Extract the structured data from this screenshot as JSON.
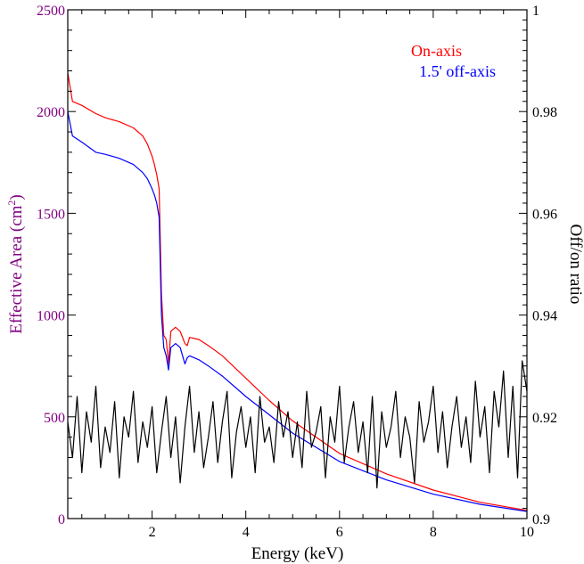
{
  "chart_data": {
    "type": "line",
    "xlabel": "Energy (keV)",
    "ylabel_left": "Effective Area (cm",
    "ylabel_left_sup": "2",
    "ylabel_left_close": ")",
    "ylabel_right": "Off/on ratio",
    "xlim": [
      0.2,
      10
    ],
    "ylim_left": [
      0,
      2500
    ],
    "ylim_right": [
      0.9,
      1.0
    ],
    "x_ticks": [
      2,
      4,
      6,
      8,
      10
    ],
    "x_tick_labels": [
      "2",
      "4",
      "6",
      "8",
      "10"
    ],
    "y_left_ticks": [
      0,
      500,
      1000,
      1500,
      2000,
      2500
    ],
    "y_left_tick_labels": [
      "0",
      "500",
      "1000",
      "1500",
      "2000",
      "2500"
    ],
    "y_right_ticks": [
      0.9,
      0.92,
      0.94,
      0.96,
      0.98,
      1.0
    ],
    "y_right_tick_labels": [
      "0.9",
      "0.92",
      "0.94",
      "0.96",
      "0.98",
      "1"
    ],
    "colors": {
      "left_axis": "#800080",
      "on_axis": "#ff0000",
      "off_axis": "#0000ff",
      "ratio": "#000000"
    },
    "legend_placement": "top-right",
    "series": [
      {
        "name": "On-axis",
        "axis": "left",
        "x": [
          0.2,
          0.3,
          0.5,
          0.8,
          1.0,
          1.3,
          1.6,
          1.8,
          1.9,
          2.0,
          2.05,
          2.1,
          2.15,
          2.2,
          2.25,
          2.3,
          2.35,
          2.4,
          2.45,
          2.5,
          2.6,
          2.7,
          2.75,
          2.8,
          3.0,
          3.2,
          3.5,
          4.0,
          4.5,
          5.0,
          6.0,
          7.0,
          8.0,
          9.0,
          10.0
        ],
        "y": [
          2190,
          2050,
          2030,
          1990,
          1970,
          1950,
          1920,
          1880,
          1840,
          1780,
          1740,
          1690,
          1620,
          1100,
          900,
          880,
          760,
          920,
          930,
          940,
          920,
          860,
          850,
          890,
          880,
          850,
          800,
          690,
          580,
          480,
          320,
          220,
          140,
          80,
          40
        ]
      },
      {
        "name": "1.5' off-axis",
        "axis": "left",
        "x": [
          0.2,
          0.3,
          0.5,
          0.8,
          1.0,
          1.3,
          1.6,
          1.8,
          1.9,
          2.0,
          2.05,
          2.1,
          2.15,
          2.2,
          2.25,
          2.3,
          2.35,
          2.4,
          2.45,
          2.5,
          2.6,
          2.7,
          2.75,
          2.8,
          3.0,
          3.2,
          3.5,
          4.0,
          4.5,
          5.0,
          6.0,
          7.0,
          8.0,
          9.0,
          10.0
        ],
        "y": [
          2000,
          1880,
          1850,
          1800,
          1790,
          1770,
          1740,
          1700,
          1670,
          1620,
          1590,
          1550,
          1480,
          1000,
          840,
          800,
          730,
          840,
          850,
          860,
          840,
          760,
          790,
          800,
          780,
          750,
          700,
          600,
          510,
          420,
          280,
          190,
          120,
          70,
          35
        ]
      },
      {
        "name": "",
        "axis": "right",
        "x": [
          0.2,
          0.3,
          0.4,
          0.5,
          0.6,
          0.7,
          0.8,
          0.9,
          1.0,
          1.1,
          1.2,
          1.3,
          1.4,
          1.5,
          1.6,
          1.7,
          1.8,
          1.9,
          2.0,
          2.1,
          2.2,
          2.3,
          2.4,
          2.5,
          2.6,
          2.7,
          2.8,
          2.9,
          3.0,
          3.1,
          3.2,
          3.3,
          3.4,
          3.5,
          3.6,
          3.7,
          3.8,
          3.9,
          4.0,
          4.1,
          4.2,
          4.3,
          4.4,
          4.5,
          4.6,
          4.7,
          4.8,
          4.9,
          5.0,
          5.1,
          5.2,
          5.3,
          5.4,
          5.5,
          5.6,
          5.7,
          5.8,
          5.9,
          6.0,
          6.1,
          6.2,
          6.3,
          6.4,
          6.5,
          6.6,
          6.7,
          6.8,
          6.9,
          7.0,
          7.1,
          7.2,
          7.3,
          7.4,
          7.5,
          7.6,
          7.7,
          7.8,
          7.9,
          8.0,
          8.1,
          8.2,
          8.3,
          8.4,
          8.5,
          8.6,
          8.7,
          8.8,
          8.9,
          9.0,
          9.1,
          9.2,
          9.3,
          9.4,
          9.5,
          9.6,
          9.7,
          9.8,
          9.9,
          10.0
        ],
        "y": [
          0.919,
          0.912,
          0.924,
          0.909,
          0.921,
          0.915,
          0.926,
          0.91,
          0.918,
          0.913,
          0.923,
          0.908,
          0.92,
          0.916,
          0.925,
          0.911,
          0.919,
          0.914,
          0.922,
          0.909,
          0.917,
          0.924,
          0.912,
          0.92,
          0.907,
          0.918,
          0.926,
          0.913,
          0.921,
          0.91,
          0.916,
          0.923,
          0.911,
          0.919,
          0.925,
          0.908,
          0.917,
          0.922,
          0.914,
          0.92,
          0.909,
          0.924,
          0.915,
          0.918,
          0.911,
          0.923,
          0.916,
          0.921,
          0.912,
          0.919,
          0.91,
          0.925,
          0.914,
          0.917,
          0.922,
          0.908,
          0.92,
          0.915,
          0.926,
          0.911,
          0.918,
          0.923,
          0.913,
          0.919,
          0.909,
          0.924,
          0.906,
          0.921,
          0.914,
          0.918,
          0.925,
          0.912,
          0.92,
          0.916,
          0.907,
          0.923,
          0.915,
          0.919,
          0.926,
          0.913,
          0.921,
          0.91,
          0.918,
          0.924,
          0.914,
          0.92,
          0.911,
          0.927,
          0.916,
          0.922,
          0.909,
          0.925,
          0.918,
          0.929,
          0.912,
          0.926,
          0.908,
          0.931,
          0.925
        ]
      }
    ],
    "legend": [
      "On-axis",
      "1.5' off-axis"
    ]
  }
}
